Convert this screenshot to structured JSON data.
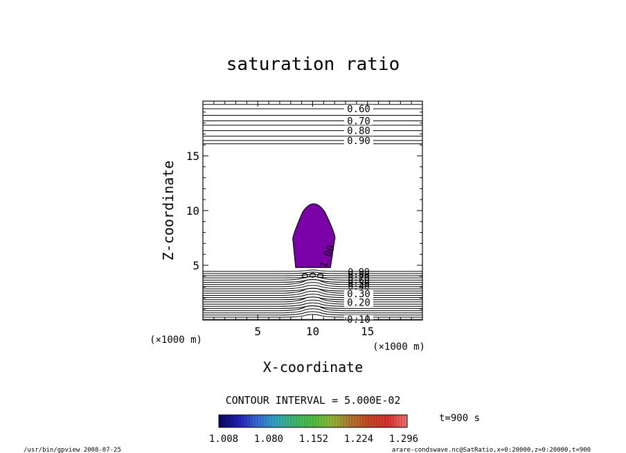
{
  "chart_data": {
    "type": "contour",
    "title": "saturation ratio",
    "xlabel": "X-coordinate",
    "ylabel": "Z-coordinate",
    "x_unit": "(×1000 m)",
    "y_unit": "(×1000 m)",
    "xlim": [
      0,
      20
    ],
    "ylim": [
      0,
      20
    ],
    "x_ticks": [
      5,
      10,
      15
    ],
    "y_ticks": [
      5,
      10,
      15
    ],
    "contour_interval_text": "CONTOUR INTERVAL = 5.000E-02",
    "time_label": "t=900 s",
    "shaded_region": {
      "value_min": 1.0,
      "color": "#7a00a8",
      "x_range_km": [
        8.2,
        12.0
      ],
      "z_range_km": [
        4.8,
        11.0
      ]
    },
    "upper_contours": [
      {
        "label": "0.60",
        "z": 19.3
      },
      {
        "label": "0.70",
        "z": 18.2
      },
      {
        "label": "0.80",
        "z": 17.3
      },
      {
        "label": "0.90",
        "z": 16.4
      }
    ],
    "upper_extra_z": [
      19.7,
      18.7,
      17.8,
      16.8,
      16.1
    ],
    "lower_labels": [
      {
        "label": "0.10",
        "z": 0.0
      },
      {
        "label": "0.20",
        "z": 1.6
      },
      {
        "label": "0.30",
        "z": 2.4
      }
    ],
    "cloud_edge_label": "1.00",
    "stacked_labels": [
      "0.90",
      "0.80",
      "0.70",
      "0.60",
      "0.50",
      "0.40"
    ],
    "colorbar": {
      "ticks": [
        "1.008",
        "1.080",
        "1.152",
        "1.224",
        "1.296"
      ],
      "colors": [
        "#0a0a60",
        "#2020b8",
        "#3a6ad8",
        "#30a8c0",
        "#40b870",
        "#50c040",
        "#90b838",
        "#b07830",
        "#c84828",
        "#d83030",
        "#f07070"
      ]
    }
  },
  "footer": {
    "left": "/usr/bin/gpview   2008-07-25",
    "right": "arare-condswave.nc@SatRatio,x=0:20000,z=0:20000,t=900"
  }
}
